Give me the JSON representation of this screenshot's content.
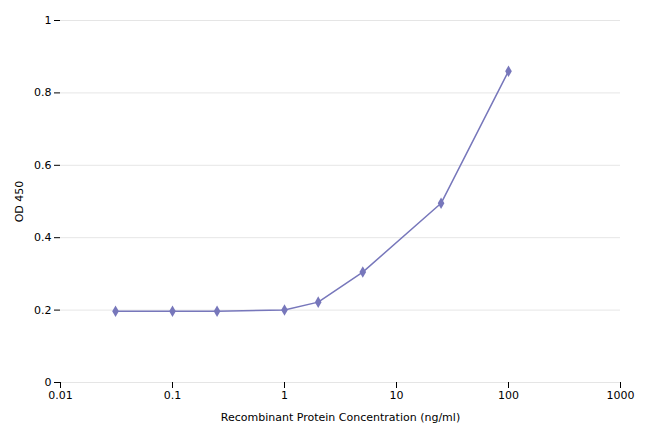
{
  "chart_data": {
    "type": "line",
    "x": [
      0.031,
      0.1,
      0.25,
      1.0,
      2.0,
      5.0,
      25.0,
      100.0
    ],
    "values": [
      0.197,
      0.197,
      0.197,
      0.2,
      0.222,
      0.305,
      0.495,
      0.86
    ],
    "color": "#7777bb",
    "marker": "diamond",
    "xlabel": "Recombinant Protein Concentration (ng/ml)",
    "ylabel": "OD 450",
    "log": "x",
    "xlim": [
      0.01,
      1000
    ],
    "xticks": [
      0.01,
      0.1,
      1,
      10,
      100,
      1000
    ],
    "ylim": [
      0,
      1
    ],
    "yticks": [
      0,
      0.2,
      0.4,
      0.6,
      0.8,
      1
    ],
    "grid": "y"
  }
}
